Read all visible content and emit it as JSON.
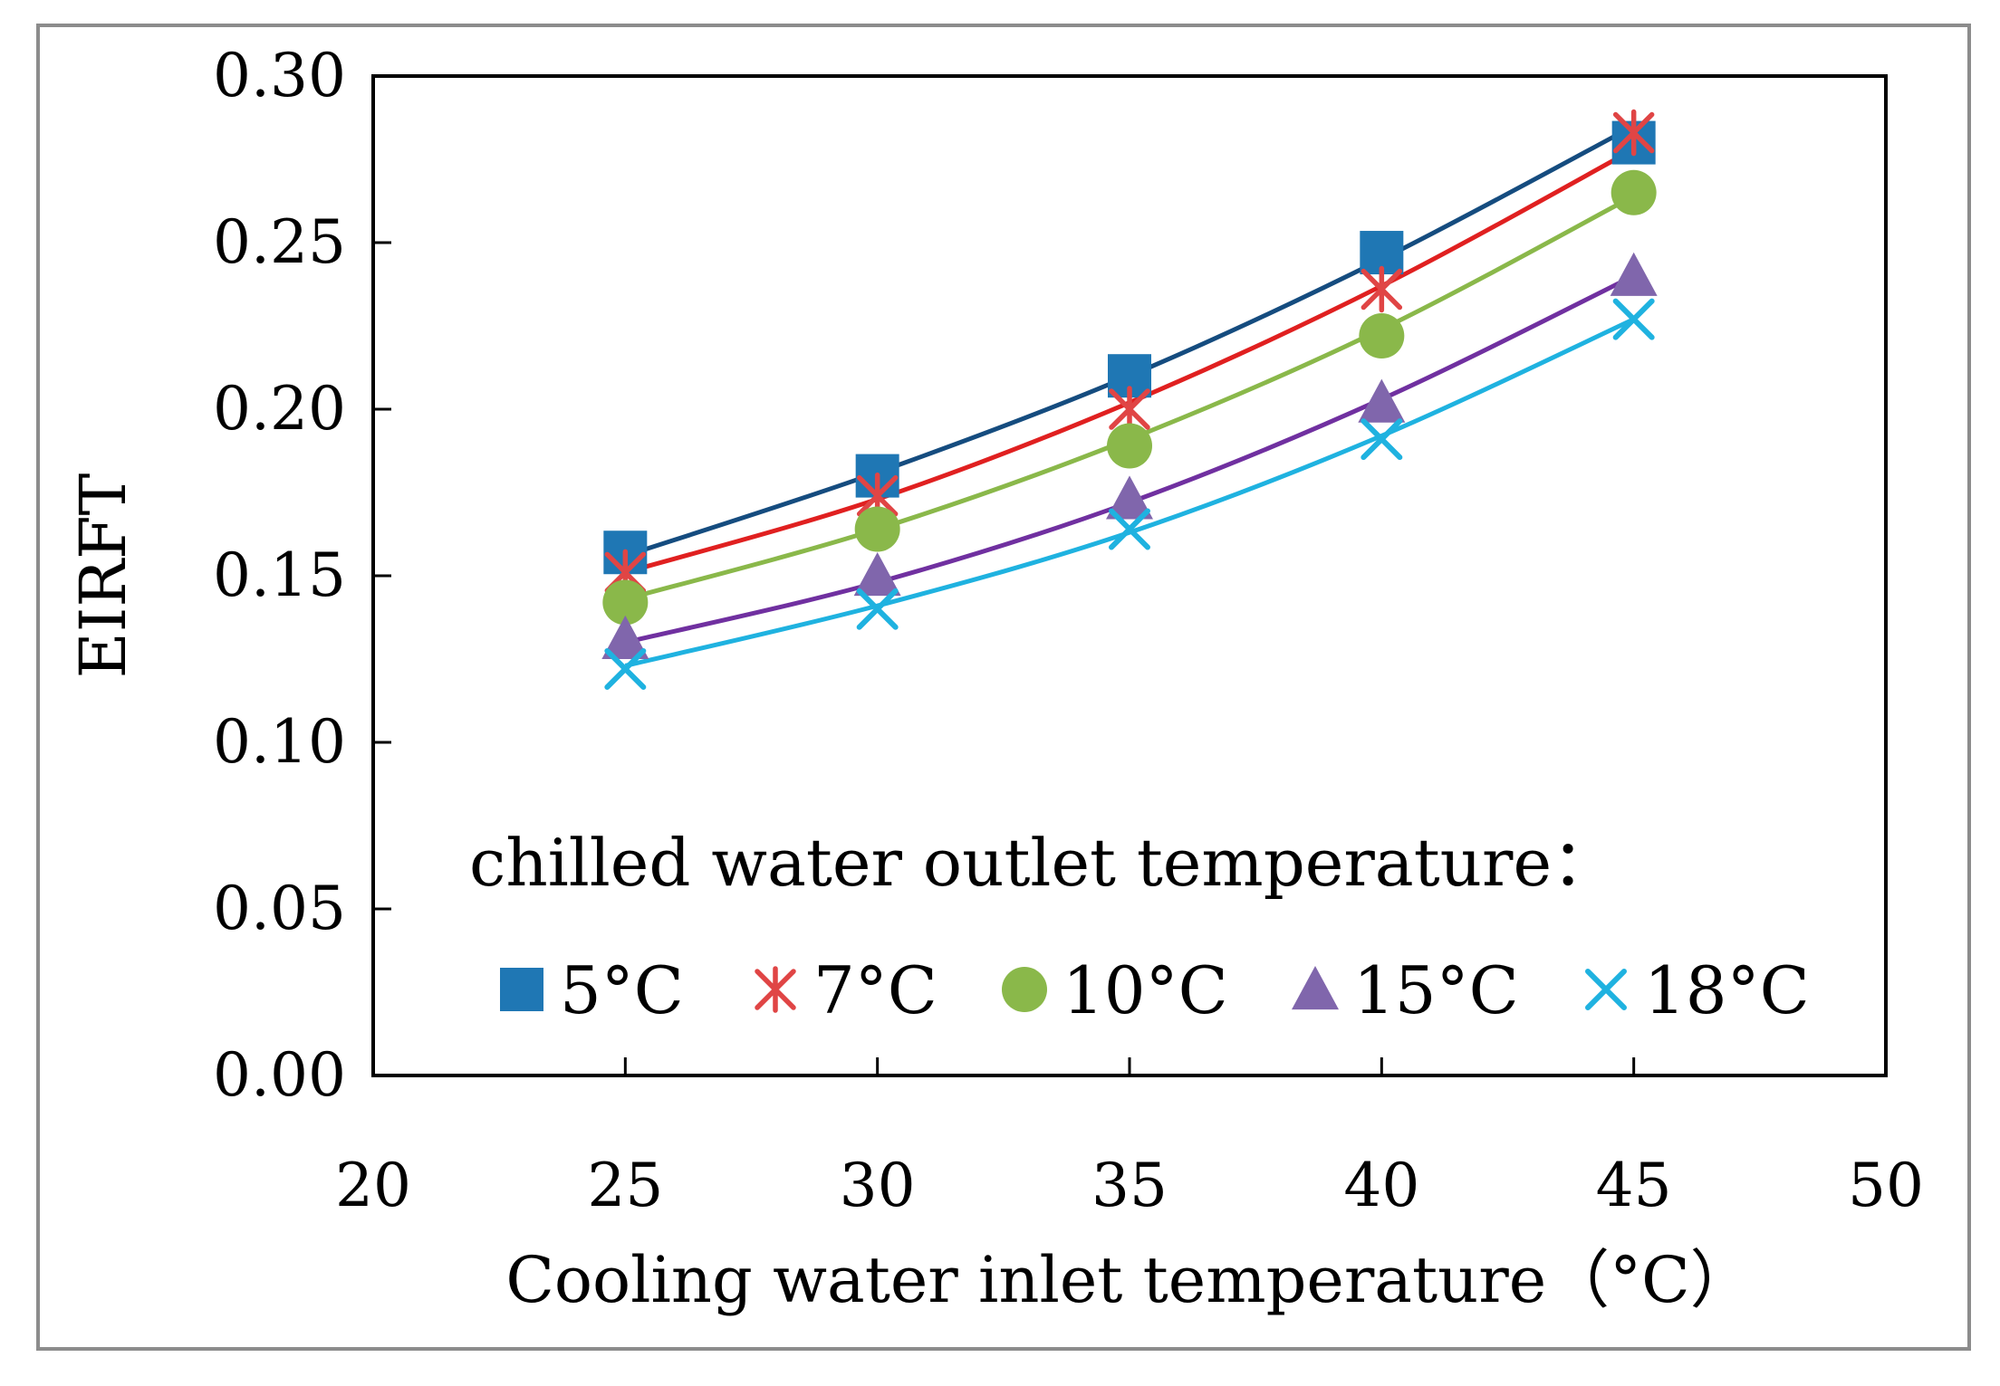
{
  "chart_data": {
    "type": "scatter",
    "title": "",
    "xlabel": "Cooling water inlet temperature（°C）",
    "ylabel": "EIRFT",
    "xlim": [
      20,
      50
    ],
    "ylim": [
      0.0,
      0.3
    ],
    "xticks": [
      "20",
      "25",
      "30",
      "35",
      "40",
      "45",
      "50"
    ],
    "yticks": [
      "0.00",
      "0.05",
      "0.10",
      "0.15",
      "0.20",
      "0.25",
      "0.30"
    ],
    "grid": false,
    "legend_title": "chilled water outlet temperature：",
    "legend_position": "bottom-inside",
    "x": [
      25,
      30,
      35,
      40,
      45
    ],
    "series": [
      {
        "name": "5°C",
        "color": "#1f77b4",
        "line_color": "#154c7f",
        "marker": "square",
        "values": [
          0.157,
          0.18,
          0.21,
          0.247,
          0.28
        ],
        "fit": [
          0.156,
          0.181,
          0.21,
          0.245,
          0.285
        ]
      },
      {
        "name": "7°C",
        "color": "#e04545",
        "line_color": "#e02020",
        "marker": "asterisk",
        "values": [
          0.151,
          0.174,
          0.2,
          0.236,
          0.283
        ],
        "fit": [
          0.151,
          0.173,
          0.202,
          0.237,
          0.278
        ]
      },
      {
        "name": "10°C",
        "color": "#8ab84a",
        "line_color": "#8ab84a",
        "marker": "circle",
        "values": [
          0.142,
          0.164,
          0.189,
          0.222,
          0.265
        ],
        "fit": [
          0.143,
          0.164,
          0.191,
          0.224,
          0.264
        ]
      },
      {
        "name": "15°C",
        "color": "#8066ac",
        "line_color": "#7030a0",
        "marker": "triangle",
        "values": [
          0.131,
          0.15,
          0.173,
          0.202,
          0.24
        ],
        "fit": [
          0.13,
          0.148,
          0.172,
          0.203,
          0.24
        ]
      },
      {
        "name": "18°C",
        "color": "#1fb2e0",
        "line_color": "#1fb2e0",
        "marker": "x",
        "values": [
          0.122,
          0.14,
          0.164,
          0.191,
          0.227
        ],
        "fit": [
          0.123,
          0.141,
          0.163,
          0.192,
          0.227
        ]
      }
    ]
  }
}
